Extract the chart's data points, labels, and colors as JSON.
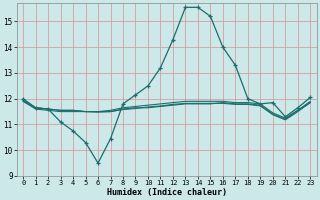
{
  "xlabel": "Humidex (Indice chaleur)",
  "background_color": "#cce8e8",
  "grid_color": "#d4a0a0",
  "line_color": "#1a6e6e",
  "xlim": [
    -0.5,
    23.5
  ],
  "ylim": [
    9,
    15.7
  ],
  "yticks": [
    9,
    10,
    11,
    12,
    13,
    14,
    15
  ],
  "xticks": [
    0,
    1,
    2,
    3,
    4,
    5,
    6,
    7,
    8,
    9,
    10,
    11,
    12,
    13,
    14,
    15,
    16,
    17,
    18,
    19,
    20,
    21,
    22,
    23
  ],
  "line1_x": [
    0,
    1,
    2,
    3,
    4,
    5,
    6,
    7,
    8,
    9,
    10,
    11,
    12,
    13,
    14,
    15,
    16,
    17,
    18,
    19,
    20,
    21,
    22,
    23
  ],
  "line1_y": [
    12.0,
    11.65,
    11.6,
    11.1,
    10.75,
    10.3,
    9.5,
    10.45,
    11.8,
    12.15,
    12.5,
    13.2,
    14.3,
    15.55,
    15.55,
    15.2,
    14.0,
    13.3,
    12.0,
    11.8,
    11.85,
    11.3,
    11.65,
    12.05
  ],
  "line2_x": [
    0,
    1,
    2,
    3,
    4,
    5,
    6,
    7,
    8,
    9,
    10,
    11,
    12,
    13,
    14,
    15,
    16,
    17,
    18,
    19,
    20,
    21,
    22,
    23
  ],
  "line2_y": [
    11.95,
    11.65,
    11.6,
    11.55,
    11.55,
    11.5,
    11.5,
    11.5,
    11.6,
    11.65,
    11.65,
    11.7,
    11.75,
    11.8,
    11.8,
    11.8,
    11.85,
    11.8,
    11.8,
    11.75,
    11.4,
    11.2,
    11.55,
    11.85
  ],
  "line3_x": [
    0,
    1,
    2,
    3,
    4,
    5,
    6,
    7,
    8,
    9,
    10,
    11,
    12,
    13,
    14,
    15,
    16,
    17,
    18,
    19,
    20,
    21,
    22,
    23
  ],
  "line3_y": [
    11.9,
    11.65,
    11.6,
    11.55,
    11.55,
    11.5,
    11.5,
    11.55,
    11.65,
    11.7,
    11.75,
    11.8,
    11.85,
    11.9,
    11.9,
    11.9,
    11.9,
    11.85,
    11.85,
    11.8,
    11.45,
    11.25,
    11.55,
    11.9
  ],
  "line4_x": [
    0,
    1,
    2,
    3,
    4,
    5,
    6,
    7,
    8,
    9,
    10,
    11,
    12,
    13,
    14,
    15,
    16,
    17,
    18,
    19,
    20,
    21,
    22,
    23
  ],
  "line4_y": [
    11.9,
    11.6,
    11.55,
    11.5,
    11.5,
    11.5,
    11.48,
    11.5,
    11.58,
    11.62,
    11.68,
    11.72,
    11.78,
    11.82,
    11.82,
    11.82,
    11.82,
    11.78,
    11.78,
    11.72,
    11.38,
    11.18,
    11.5,
    11.85
  ]
}
